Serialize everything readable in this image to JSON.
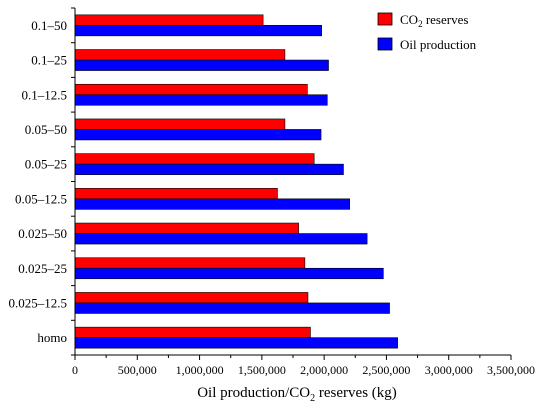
{
  "chart_data": {
    "type": "bar",
    "orientation": "horizontal",
    "categories": [
      "homo",
      "0.025–12.5",
      "0.025–25",
      "0.025–50",
      "0.05–12.5",
      "0.05–25",
      "0.05–50",
      "0.1–12.5",
      "0.1–25",
      "0.1–50"
    ],
    "series": [
      {
        "name_main": "CO",
        "name_sub": "2",
        "name_rest": " reserves",
        "color": "#ff0000",
        "values": [
          1890000,
          1870000,
          1845000,
          1795000,
          1625000,
          1920000,
          1685000,
          1865000,
          1685000,
          1510000
        ]
      },
      {
        "name": "Oil production",
        "color": "#0000ff",
        "values": [
          2590000,
          2525000,
          2475000,
          2345000,
          2205000,
          2155000,
          1975000,
          2025000,
          2035000,
          1980000
        ]
      }
    ],
    "x_ticks": [
      "0",
      "500,000",
      "1,000,000",
      "1,500,000",
      "2,000,000",
      "2,500,000",
      "3,000,000",
      "3,500,000"
    ],
    "xlim": [
      0,
      3500000
    ],
    "xlabel_main": "Oil production/CO",
    "xlabel_sub": "2",
    "xlabel_rest": " reserves (kg)",
    "legend_position": "top-right",
    "grid": false
  }
}
